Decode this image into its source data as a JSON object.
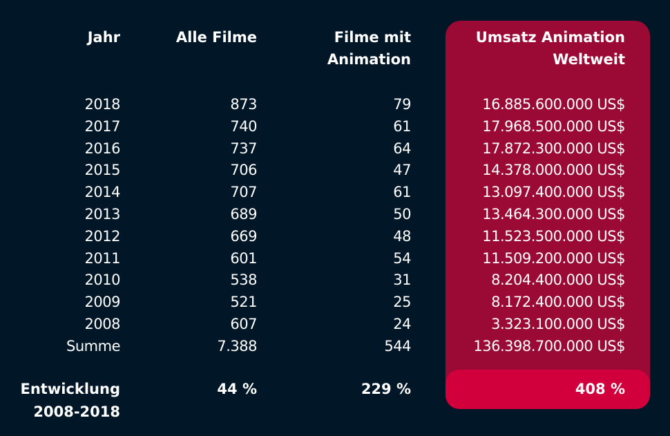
{
  "headers": {
    "year": "Jahr",
    "all_films": "Alle Filme",
    "animation_films_1": "Filme mit",
    "animation_films_2": "Animation",
    "revenue_1": "Umsatz Animation",
    "revenue_2": "Weltweit"
  },
  "rows": [
    {
      "year": "2018",
      "all": "873",
      "anim": "79",
      "revenue": "16.885.600.000 US$"
    },
    {
      "year": "2017",
      "all": "740",
      "anim": "61",
      "revenue": "17.968.500.000 US$"
    },
    {
      "year": "2016",
      "all": "737",
      "anim": "64",
      "revenue": "17.872.300.000 US$"
    },
    {
      "year": "2015",
      "all": "706",
      "anim": "47",
      "revenue": "14.378.000.000 US$"
    },
    {
      "year": "2014",
      "all": "707",
      "anim": "61",
      "revenue": "13.097.400.000 US$"
    },
    {
      "year": "2013",
      "all": "689",
      "anim": "50",
      "revenue": "13.464.300.000 US$"
    },
    {
      "year": "2012",
      "all": "669",
      "anim": "48",
      "revenue": "11.523.500.000 US$"
    },
    {
      "year": "2011",
      "all": "601",
      "anim": "54",
      "revenue": "11.509.200.000 US$"
    },
    {
      "year": "2010",
      "all": "538",
      "anim": "31",
      "revenue": "8.204.400.000 US$"
    },
    {
      "year": "2009",
      "all": "521",
      "anim": "25",
      "revenue": "8.172.400.000 US$"
    },
    {
      "year": "2008",
      "all": "607",
      "anim": "24",
      "revenue": "3.323.100.000 US$"
    },
    {
      "year": "Summe",
      "all": "7.388",
      "anim": "544",
      "revenue": "136.398.700.000 US$"
    }
  ],
  "development": {
    "label_1": "Entwicklung",
    "label_2": "2008-2018",
    "all": "44 %",
    "anim": "229 %",
    "revenue": "408 %"
  },
  "colors": {
    "background": "#011627",
    "panel": "#9b0a35",
    "highlight": "#d1003c"
  }
}
